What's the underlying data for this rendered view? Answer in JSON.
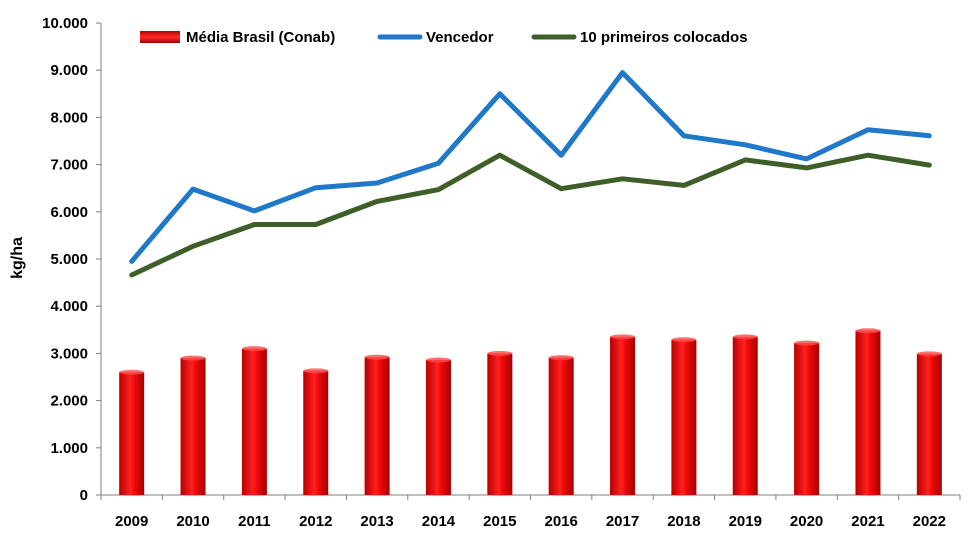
{
  "chart_data": {
    "type": "bar",
    "categories": [
      "2009",
      "2010",
      "2011",
      "2012",
      "2013",
      "2014",
      "2015",
      "2016",
      "2017",
      "2018",
      "2019",
      "2020",
      "2021",
      "2022"
    ],
    "series": [
      {
        "name": "Média Brasil (Conab)",
        "type": "bar",
        "color": "#e00000",
        "values": [
          2600,
          2900,
          3100,
          2630,
          2920,
          2860,
          3000,
          2910,
          3350,
          3290,
          3350,
          3220,
          3480,
          2990
        ]
      },
      {
        "name": "Vencedor",
        "type": "line",
        "color": "#1f78c8",
        "values": [
          4950,
          6480,
          6020,
          6510,
          6610,
          7030,
          8500,
          7200,
          8950,
          7610,
          7420,
          7120,
          7740,
          7610
        ]
      },
      {
        "name": "10 primeiros colocados",
        "type": "line",
        "color": "#3e5f2a",
        "values": [
          4660,
          5270,
          5730,
          5730,
          6220,
          6470,
          7200,
          6490,
          6700,
          6560,
          7100,
          6930,
          7200,
          6990
        ]
      }
    ],
    "ylabel": "kg/ha",
    "xlabel": "",
    "ylim": [
      0,
      10000
    ],
    "yticks": [
      "0",
      "1.000",
      "2.000",
      "3.000",
      "4.000",
      "5.000",
      "6.000",
      "7.000",
      "8.000",
      "9.000",
      "10.000"
    ],
    "grid": false,
    "legend_position": "top"
  }
}
